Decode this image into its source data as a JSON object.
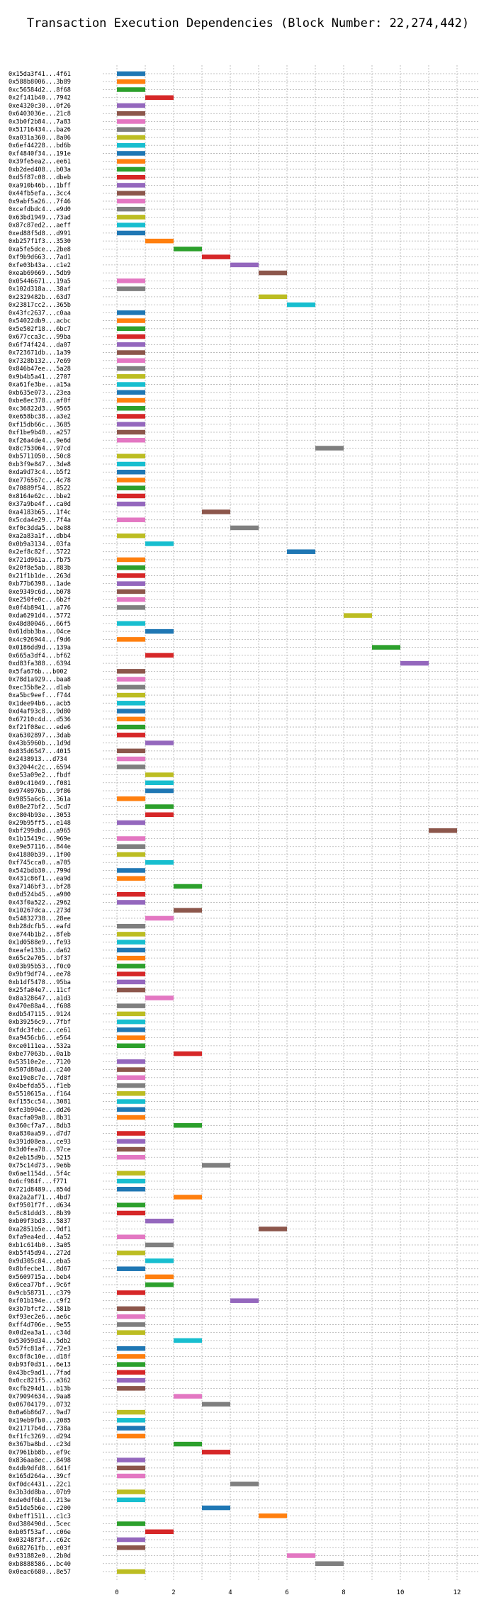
{
  "chart_data": {
    "type": "bar",
    "orientation": "horizontal",
    "title": "Transaction Execution Dependencies (Block Number: 22,274,442)",
    "xlabel": "",
    "ylabel": "",
    "xlim": [
      -0.5,
      12.8
    ],
    "xticks": [
      0,
      2,
      4,
      6,
      8,
      10,
      12
    ],
    "grid": true,
    "palette": [
      "#1f77b4",
      "#ff7f0e",
      "#2ca02c",
      "#d62728",
      "#9467bd",
      "#8c564b",
      "#e377c2",
      "#7f7f7f",
      "#bcbd22",
      "#17becf"
    ],
    "transactions": [
      {
        "hash": "0x15da3f41...4f61",
        "start": 0
      },
      {
        "hash": "0x588b8006...3b89",
        "start": 0
      },
      {
        "hash": "0xc56584d2...8f68",
        "start": 0
      },
      {
        "hash": "0x2f141b40...7942",
        "start": 1
      },
      {
        "hash": "0xe4320c30...0f26",
        "start": 0
      },
      {
        "hash": "0x6403036e...21c8",
        "start": 0
      },
      {
        "hash": "0x3b0f2b84...7a83",
        "start": 0
      },
      {
        "hash": "0x51716434...ba26",
        "start": 0
      },
      {
        "hash": "0xa031a360...8a06",
        "start": 0
      },
      {
        "hash": "0x6ef44228...bd6b",
        "start": 0
      },
      {
        "hash": "0xf4840f34...191e",
        "start": 0
      },
      {
        "hash": "0x39fe5ea2...ee61",
        "start": 0
      },
      {
        "hash": "0xb2ded408...b03a",
        "start": 0
      },
      {
        "hash": "0xd5f87c08...dbeb",
        "start": 0
      },
      {
        "hash": "0xa910b46b...1bff",
        "start": 0
      },
      {
        "hash": "0x44fb5efa...3cc4",
        "start": 0
      },
      {
        "hash": "0x9abf5a26...7f46",
        "start": 0
      },
      {
        "hash": "0xcefdbdc4...e9d0",
        "start": 0
      },
      {
        "hash": "0x63bd1949...73ad",
        "start": 0
      },
      {
        "hash": "0x87c87ed2...aeff",
        "start": 0
      },
      {
        "hash": "0xed88f5d8...d991",
        "start": 0
      },
      {
        "hash": "0xb257f1f3...3530",
        "start": 1
      },
      {
        "hash": "0xa5fe5dce...2be8",
        "start": 2
      },
      {
        "hash": "0xf9b9d663...7ad1",
        "start": 3
      },
      {
        "hash": "0xfe03b43a...c1e2",
        "start": 4
      },
      {
        "hash": "0xeab69669...5db9",
        "start": 5
      },
      {
        "hash": "0x05446671...19a5",
        "start": 0
      },
      {
        "hash": "0x102d318a...38af",
        "start": 0
      },
      {
        "hash": "0x2329482b...63d7",
        "start": 5
      },
      {
        "hash": "0x23817cc2...365b",
        "start": 6
      },
      {
        "hash": "0x43fc2637...c0aa",
        "start": 0
      },
      {
        "hash": "0x54022db9...acbc",
        "start": 0
      },
      {
        "hash": "0x5e502f18...6bc7",
        "start": 0
      },
      {
        "hash": "0x677cca3c...99ba",
        "start": 0
      },
      {
        "hash": "0x6f74f424...da07",
        "start": 0
      },
      {
        "hash": "0x723671db...1a39",
        "start": 0
      },
      {
        "hash": "0x7328b132...7e69",
        "start": 0
      },
      {
        "hash": "0x846b47ee...5a28",
        "start": 0
      },
      {
        "hash": "0x9b4b5a41...2707",
        "start": 0
      },
      {
        "hash": "0xa61fe3be...a15a",
        "start": 0
      },
      {
        "hash": "0xb635e073...23ea",
        "start": 0
      },
      {
        "hash": "0xbe8ec378...af0f",
        "start": 0
      },
      {
        "hash": "0xc36822d3...9565",
        "start": 0
      },
      {
        "hash": "0xe658bc38...a3e2",
        "start": 0
      },
      {
        "hash": "0xf15db66c...3685",
        "start": 0
      },
      {
        "hash": "0xf1be9b40...a257",
        "start": 0
      },
      {
        "hash": "0xf26a4de4...9e6d",
        "start": 0
      },
      {
        "hash": "0x8c753064...97cd",
        "start": 7
      },
      {
        "hash": "0xb5711050...50c8",
        "start": 0
      },
      {
        "hash": "0xb3f9e847...3de8",
        "start": 0
      },
      {
        "hash": "0xda9d73c4...b5f2",
        "start": 0
      },
      {
        "hash": "0xe776567c...4c78",
        "start": 0
      },
      {
        "hash": "0x70889f54...8522",
        "start": 0
      },
      {
        "hash": "0x8164e62c...bbe2",
        "start": 0
      },
      {
        "hash": "0x37a9be4f...ca0d",
        "start": 0
      },
      {
        "hash": "0xa4183b65...1f4c",
        "start": 3
      },
      {
        "hash": "0x5cda4e29...7f4a",
        "start": 0
      },
      {
        "hash": "0xf0c3dda5...be88",
        "start": 4
      },
      {
        "hash": "0xa2a83a1f...dbb4",
        "start": 0
      },
      {
        "hash": "0x0b9a3134...03fa",
        "start": 1
      },
      {
        "hash": "0x2ef8c82f...5722",
        "start": 6
      },
      {
        "hash": "0x721d961a...fb75",
        "start": 0
      },
      {
        "hash": "0x20f8e5ab...883b",
        "start": 0
      },
      {
        "hash": "0x21f1b1de...263d",
        "start": 0
      },
      {
        "hash": "0xb77b6398...1ade",
        "start": 0
      },
      {
        "hash": "0xe9349c6d...b078",
        "start": 0
      },
      {
        "hash": "0xe250fe0c...6b2f",
        "start": 0
      },
      {
        "hash": "0x0f4b8941...a776",
        "start": 0
      },
      {
        "hash": "0xda6291d4...5772",
        "start": 8
      },
      {
        "hash": "0x48d80046...66f5",
        "start": 0
      },
      {
        "hash": "0x61dbb3ba...04ce",
        "start": 1
      },
      {
        "hash": "0x4c926944...f9d6",
        "start": 0
      },
      {
        "hash": "0x0186dd9d...139a",
        "start": 9
      },
      {
        "hash": "0x665a3df4...bf62",
        "start": 1
      },
      {
        "hash": "0xd83fa388...6394",
        "start": 10
      },
      {
        "hash": "0x5fa676b...b002",
        "start": 0
      },
      {
        "hash": "0x78d1a929...baa8",
        "start": 0
      },
      {
        "hash": "0xec35b8e2...d1ab",
        "start": 0
      },
      {
        "hash": "0xa5bc9eef...f744",
        "start": 0
      },
      {
        "hash": "0x1dee94b6...acb5",
        "start": 0
      },
      {
        "hash": "0xd4af93c8...9d80",
        "start": 0
      },
      {
        "hash": "0x67210c4d...d536",
        "start": 0
      },
      {
        "hash": "0xf21f08ec...ede6",
        "start": 0
      },
      {
        "hash": "0xa6302897...3dab",
        "start": 0
      },
      {
        "hash": "0x43b5960b...1d9d",
        "start": 1
      },
      {
        "hash": "0x835d6547...4015",
        "start": 0
      },
      {
        "hash": "0x2438913...d734",
        "start": 0
      },
      {
        "hash": "0x32044c2c...6594",
        "start": 0
      },
      {
        "hash": "0xe53a09e2...fbdf",
        "start": 1
      },
      {
        "hash": "0x09c41049...f081",
        "start": 1
      },
      {
        "hash": "0x9740976b...9f86",
        "start": 1
      },
      {
        "hash": "0x9855a6c6...361a",
        "start": 0
      },
      {
        "hash": "0x08e27bf2...5cd7",
        "start": 1
      },
      {
        "hash": "0xc804b93e...3053",
        "start": 1
      },
      {
        "hash": "0x29b95ff5...e148",
        "start": 0
      },
      {
        "hash": "0xbf299dbd...a965",
        "start": 11
      },
      {
        "hash": "0x1b15419c...969e",
        "start": 0
      },
      {
        "hash": "0xe9e57116...844e",
        "start": 0
      },
      {
        "hash": "0x41880b39...1f00",
        "start": 0
      },
      {
        "hash": "0xf745cca0...a705",
        "start": 1
      },
      {
        "hash": "0x542bdb30...799d",
        "start": 0
      },
      {
        "hash": "0x431c86f1...ea9d",
        "start": 0
      },
      {
        "hash": "0xa7146bf3...bf28",
        "start": 2
      },
      {
        "hash": "0x0d524b45...a900",
        "start": 0
      },
      {
        "hash": "0x43f0a522...2962",
        "start": 0
      },
      {
        "hash": "0x10267dca...273d",
        "start": 2
      },
      {
        "hash": "0x54832738...28ee",
        "start": 1
      },
      {
        "hash": "0xb28dcfb5...eafd",
        "start": 0
      },
      {
        "hash": "0xe744b1b2...8feb",
        "start": 0
      },
      {
        "hash": "0x1d0588e9...fe93",
        "start": 0
      },
      {
        "hash": "0xeafe133b...da62",
        "start": 0
      },
      {
        "hash": "0x65c2e705...bf37",
        "start": 0
      },
      {
        "hash": "0x03b95b53...f0c0",
        "start": 0
      },
      {
        "hash": "0x9bf9df74...ee78",
        "start": 0
      },
      {
        "hash": "0xb1df5478...95ba",
        "start": 0
      },
      {
        "hash": "0x25fa04e7...11cf",
        "start": 0
      },
      {
        "hash": "0x8a328647...a1d3",
        "start": 1
      },
      {
        "hash": "0x470e88a4...f608",
        "start": 0
      },
      {
        "hash": "0xdb547115...9124",
        "start": 0
      },
      {
        "hash": "0xb39256c9...7fbf",
        "start": 0
      },
      {
        "hash": "0xfdc3febc...ce61",
        "start": 0
      },
      {
        "hash": "0xa9456cb6...e564",
        "start": 0
      },
      {
        "hash": "0xce0111ea...532a",
        "start": 0
      },
      {
        "hash": "0xbe77063b...0a1b",
        "start": 2
      },
      {
        "hash": "0x53510e2e...7120",
        "start": 0
      },
      {
        "hash": "0x507d80ad...c240",
        "start": 0
      },
      {
        "hash": "0xe19e8c7e...7d8f",
        "start": 0
      },
      {
        "hash": "0x4befda55...f1eb",
        "start": 0
      },
      {
        "hash": "0x5510615a...f164",
        "start": 0
      },
      {
        "hash": "0xf155cc54...3081",
        "start": 0
      },
      {
        "hash": "0xfe3b904e...dd26",
        "start": 0
      },
      {
        "hash": "0xacfa09a8...8b31",
        "start": 0
      },
      {
        "hash": "0x360cf7a7...8db3",
        "start": 2
      },
      {
        "hash": "0xa830aa59...d7d7",
        "start": 0
      },
      {
        "hash": "0x391d08ea...ce93",
        "start": 0
      },
      {
        "hash": "0x3d0fea78...97ce",
        "start": 0
      },
      {
        "hash": "0x2eb15d9b...5215",
        "start": 0
      },
      {
        "hash": "0x75c14d73...9e6b",
        "start": 3
      },
      {
        "hash": "0x6ae1154d...5f4c",
        "start": 0
      },
      {
        "hash": "0x6cf984f...f771",
        "start": 0
      },
      {
        "hash": "0x721d8489...854d",
        "start": 0
      },
      {
        "hash": "0xa2a2af71...4bd7",
        "start": 2
      },
      {
        "hash": "0xf9501f7f...d634",
        "start": 0
      },
      {
        "hash": "0x5c81ddd3...8b39",
        "start": 0
      },
      {
        "hash": "0xb09f3bd3...5837",
        "start": 1
      },
      {
        "hash": "0xa2851b5e...9df1",
        "start": 5
      },
      {
        "hash": "0xfa9ea4ed...4a52",
        "start": 0
      },
      {
        "hash": "0xb1c614b0...3a05",
        "start": 1
      },
      {
        "hash": "0xb5f45d94...272d",
        "start": 0
      },
      {
        "hash": "0x9d305c84...eba5",
        "start": 1
      },
      {
        "hash": "0x8bfecbe1...8d67",
        "start": 0
      },
      {
        "hash": "0x5609715a...beb4",
        "start": 1
      },
      {
        "hash": "0x6cea77bf...9c6f",
        "start": 1
      },
      {
        "hash": "0x9cb58731...c379",
        "start": 0
      },
      {
        "hash": "0xf01b194e...c9f2",
        "start": 4
      },
      {
        "hash": "0x3b7bfcf2...581b",
        "start": 0
      },
      {
        "hash": "0xf93ec2e6...ae6c",
        "start": 0
      },
      {
        "hash": "0xff4d706e...9e55",
        "start": 0
      },
      {
        "hash": "0x0d2ea3a1...c34d",
        "start": 0
      },
      {
        "hash": "0x53059d34...5db2",
        "start": 2
      },
      {
        "hash": "0x57fc81af...72e3",
        "start": 0
      },
      {
        "hash": "0xc8f8c10e...d18f",
        "start": 0
      },
      {
        "hash": "0xb93f0d31...6e13",
        "start": 0
      },
      {
        "hash": "0x43bc9ad1...7fad",
        "start": 0
      },
      {
        "hash": "0x0cc821f5...a362",
        "start": 0
      },
      {
        "hash": "0xcfb294d1...b13b",
        "start": 0
      },
      {
        "hash": "0x79094634...9aa8",
        "start": 2
      },
      {
        "hash": "0x06704179...0732",
        "start": 3
      },
      {
        "hash": "0x0a6b86d7...9ad7",
        "start": 0
      },
      {
        "hash": "0x19eb9fb0...2085",
        "start": 0
      },
      {
        "hash": "0x21717b4d...738a",
        "start": 0
      },
      {
        "hash": "0xf1fc3269...d294",
        "start": 0
      },
      {
        "hash": "0x367ba8bd...c23d",
        "start": 2
      },
      {
        "hash": "0x7961bb8b...ef9c",
        "start": 3
      },
      {
        "hash": "0x836aa8ec...8498",
        "start": 0
      },
      {
        "hash": "0x4db9dfd8...641f",
        "start": 0
      },
      {
        "hash": "0x165d264a...39cf",
        "start": 0
      },
      {
        "hash": "0xf0dc4431...22c1",
        "start": 4
      },
      {
        "hash": "0x3b3dd8ba...07b9",
        "start": 0
      },
      {
        "hash": "0xde0df6b4...213e",
        "start": 0
      },
      {
        "hash": "0x51de5b6e...c200",
        "start": 3
      },
      {
        "hash": "0xbeff1511...c1c3",
        "start": 5
      },
      {
        "hash": "0xd380490d...5cec",
        "start": 0
      },
      {
        "hash": "0xb05f53af...c06e",
        "start": 1
      },
      {
        "hash": "0x03248f3f...c62c",
        "start": 0
      },
      {
        "hash": "0x682761fb...e03f",
        "start": 0
      },
      {
        "hash": "0x931882e0...2b0d",
        "start": 6
      },
      {
        "hash": "0xb8888586...bc40",
        "start": 7
      },
      {
        "hash": "0x0eac6680...8e57",
        "start": 0
      }
    ]
  }
}
